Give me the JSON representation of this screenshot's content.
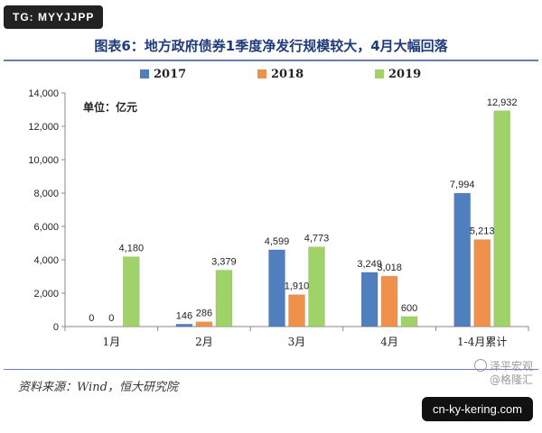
{
  "badge": {
    "text": "TG: MYYJJPP"
  },
  "watermark": {
    "brand": "泽平宏观",
    "handle": "@格隆汇"
  },
  "url_badge": {
    "text": "cn-ky-kering.com"
  },
  "source": "资料来源：Wind，恒大研究院",
  "colors": {
    "2017": "#4f7fbf",
    "2018": "#f0914b",
    "2019": "#9fd36a",
    "rule": "#6b7cae",
    "title": "#1f3b7a"
  },
  "chart_data": {
    "type": "bar",
    "title": "图表6：地方政府债券1季度净发行规模较大，4月大幅回落",
    "unit_label": "单位：亿元",
    "categories": [
      "1月",
      "2月",
      "3月",
      "4月",
      "1-4月累计"
    ],
    "series": [
      {
        "name": "2017",
        "values": [
          0,
          146,
          4599,
          3249,
          7994
        ],
        "labels": [
          "0",
          "146",
          "4,599",
          "3,249",
          "7,994"
        ]
      },
      {
        "name": "2018",
        "values": [
          0,
          286,
          1910,
          3018,
          5213
        ],
        "labels": [
          "0",
          "286",
          "1,910",
          "3,018",
          "5,213"
        ]
      },
      {
        "name": "2019",
        "values": [
          4180,
          3379,
          4773,
          600,
          12932
        ],
        "labels": [
          "4,180",
          "3,379",
          "4,773",
          "600",
          "12,932"
        ]
      }
    ],
    "y_ticks": [
      "0",
      "2,000",
      "4,000",
      "6,000",
      "8,000",
      "10,000",
      "12,000",
      "14,000"
    ],
    "ylim": [
      0,
      14000
    ],
    "legend_position": "top"
  }
}
